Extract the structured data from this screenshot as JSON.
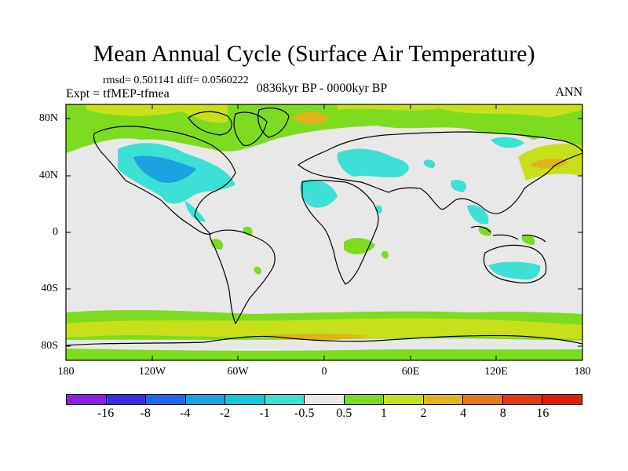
{
  "title": "Mean Annual Cycle (Surface Air Temperature)",
  "stats": "rmsd= 0.501141 diff= 0.0560222",
  "experiment": "Expt = tfMEP-tfmea",
  "period": "0836kyr BP - 0000kyr BP",
  "season": "ANN",
  "lat_labels": [
    "80N",
    "40N",
    "0",
    "40S",
    "80S"
  ],
  "lon_labels": [
    "180",
    "120W",
    "60W",
    "0",
    "60E",
    "120E",
    "180"
  ],
  "colorbar": {
    "labels": [
      "-16",
      "-8",
      "-4",
      "-2",
      "-1",
      "-0.5",
      "0.5",
      "1",
      "2",
      "4",
      "8",
      "16"
    ],
    "colors": [
      "#8a1fe0",
      "#3a2ee0",
      "#1f67e6",
      "#1aa3e0",
      "#12c8dc",
      "#3de0d4",
      "#e8e8e8",
      "#7ddc1f",
      "#c8e01a",
      "#e0b41a",
      "#e07a1a",
      "#e03a14",
      "#e01f0a"
    ]
  },
  "icons": [
    "world-map-coastlines"
  ]
}
